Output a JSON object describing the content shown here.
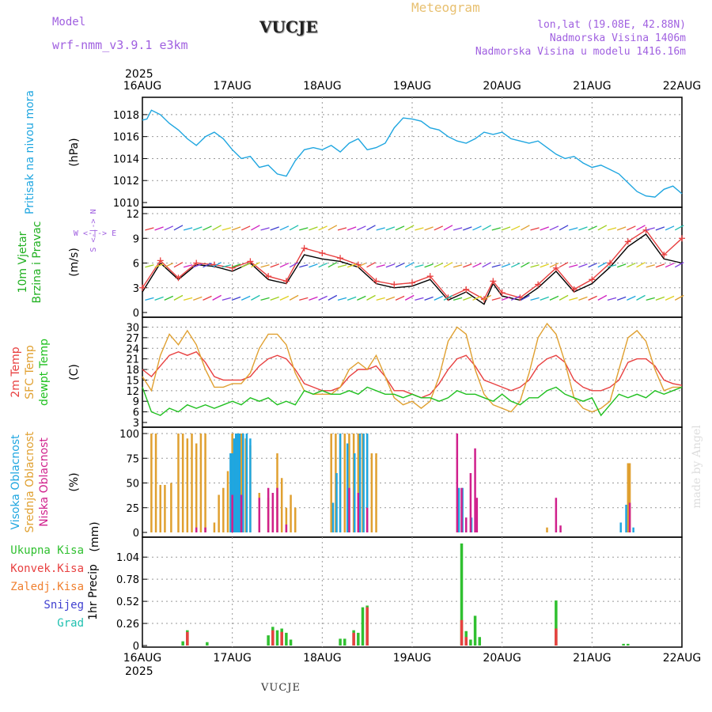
{
  "header": {
    "model_label": "Model",
    "model_name": "wrf-nmm_v3.9.1 e3km",
    "title": "VUCJE",
    "meteogram_label": "Meteogram",
    "coords": "lon,lat (19.08E, 42.88N)",
    "elevation": "Nadmorska Visina 1406m",
    "model_elevation": "Nadmorska Visina u modelu 1416.16m",
    "bottom_title": "VUCJE",
    "watermark": "made by Angel"
  },
  "colors": {
    "pressure": "#1fa6e0",
    "temp2m": "#e84040",
    "sfc": "#e0a030",
    "dew": "#20c020",
    "cloud_high": "#1fa6e0",
    "cloud_mid": "#e0a030",
    "cloud_low": "#d0208c",
    "total": "#30c030",
    "conv": "#e84040",
    "strat": "#f08030",
    "snow": "#4040d0",
    "hail": "#20c0b0",
    "wind_label": "#20b020",
    "wind_axis_label": "#a060e0",
    "model": "#a060e0"
  },
  "chart_data": [
    {
      "type": "line",
      "id": "pressure",
      "ylabel_lines": [
        "Pritisak na nivou mora"
      ],
      "unit": "(hPa)",
      "ylim": [
        1010,
        1019
      ],
      "yticks": [
        1010,
        1012,
        1014,
        1016,
        1018
      ],
      "x_start_label": "2025",
      "x_start_year": "2025",
      "x_end_year": "2025",
      "x_ticks": [
        "16AUG",
        "17AUG",
        "18AUG",
        "19AUG",
        "20AUG",
        "21AUG",
        "22AUG"
      ],
      "xlim_days": [
        0,
        6
      ],
      "series": [
        {
          "name": "Pritisak",
          "color": "#1fa6e0",
          "x": [
            0,
            0.05,
            0.1,
            0.15,
            0.2,
            0.3,
            0.4,
            0.5,
            0.6,
            0.7,
            0.8,
            0.9,
            1.0,
            1.1,
            1.2,
            1.3,
            1.4,
            1.5,
            1.6,
            1.7,
            1.8,
            1.9,
            2.0,
            2.1,
            2.2,
            2.3,
            2.4,
            2.5,
            2.6,
            2.7,
            2.8,
            2.9,
            3.0,
            3.1,
            3.2,
            3.3,
            3.4,
            3.5,
            3.6,
            3.7,
            3.8,
            3.9,
            4.0,
            4.1,
            4.2,
            4.3,
            4.4,
            4.5,
            4.6,
            4.7,
            4.8,
            4.9,
            5.0,
            5.1,
            5.2,
            5.3,
            5.4,
            5.5,
            5.6,
            5.7,
            5.8,
            5.9,
            6.0
          ],
          "y": [
            1017.5,
            1017.6,
            1018.4,
            1018.2,
            1018.0,
            1017.2,
            1016.6,
            1015.8,
            1015.2,
            1016.0,
            1016.4,
            1015.8,
            1014.8,
            1014.0,
            1014.2,
            1013.2,
            1013.4,
            1012.6,
            1012.4,
            1013.8,
            1014.8,
            1015.0,
            1014.8,
            1015.2,
            1014.6,
            1015.4,
            1015.8,
            1014.8,
            1015.0,
            1015.4,
            1016.8,
            1017.7,
            1017.6,
            1017.4,
            1016.8,
            1016.6,
            1016.0,
            1015.6,
            1015.4,
            1015.8,
            1016.4,
            1016.2,
            1016.4,
            1015.8,
            1015.6,
            1015.4,
            1015.6,
            1015.0,
            1014.4,
            1014.0,
            1014.2,
            1013.6,
            1013.2,
            1013.4,
            1013.0,
            1012.6,
            1011.8,
            1011.0,
            1010.6,
            1010.5,
            1011.2,
            1011.5,
            1010.8
          ]
        }
      ]
    },
    {
      "type": "line",
      "id": "wind",
      "ylabel_lines": [
        "10m Vjetar",
        "Brzina i Pravac"
      ],
      "unit": "(m/s)",
      "direction_label": "W <-|-> E",
      "direction_sub": "S <-|-> N",
      "ylim": [
        0,
        12
      ],
      "yticks": [
        0,
        3,
        6,
        9,
        12
      ],
      "xlim_days": [
        0,
        6
      ],
      "barb_rows_y": [
        1.5,
        5.5,
        10
      ],
      "series": [
        {
          "name": "Brzina (crna)",
          "color": "#000000",
          "x": [
            0,
            0.2,
            0.4,
            0.6,
            0.8,
            1.0,
            1.2,
            1.4,
            1.6,
            1.8,
            2.0,
            2.2,
            2.4,
            2.6,
            2.8,
            3.0,
            3.2,
            3.4,
            3.6,
            3.8,
            3.9,
            4.0,
            4.2,
            4.4,
            4.6,
            4.8,
            5.0,
            5.2,
            5.4,
            5.6,
            5.8,
            6.0
          ],
          "y": [
            2.5,
            6.0,
            4.0,
            5.8,
            5.6,
            5.0,
            6.0,
            4.0,
            3.5,
            7.0,
            6.5,
            6.2,
            5.5,
            3.5,
            3.0,
            3.2,
            4.0,
            1.5,
            2.5,
            1.0,
            3.5,
            2.0,
            1.5,
            3.0,
            5.0,
            2.5,
            3.5,
            5.5,
            8.0,
            9.5,
            6.5,
            6.0
          ]
        },
        {
          "name": "Udari (crvena)",
          "color": "#e84040",
          "x": [
            0,
            0.2,
            0.4,
            0.6,
            0.8,
            1.0,
            1.2,
            1.4,
            1.6,
            1.8,
            2.0,
            2.2,
            2.4,
            2.6,
            2.8,
            3.0,
            3.2,
            3.4,
            3.6,
            3.8,
            3.9,
            4.0,
            4.2,
            4.4,
            4.6,
            4.8,
            5.0,
            5.2,
            5.4,
            5.6,
            5.8,
            6.0
          ],
          "y": [
            3.0,
            6.3,
            4.2,
            6.0,
            5.8,
            5.4,
            6.2,
            4.4,
            3.8,
            7.8,
            7.2,
            6.6,
            5.8,
            3.8,
            3.4,
            3.6,
            4.4,
            1.8,
            2.8,
            1.6,
            3.8,
            2.4,
            1.8,
            3.4,
            5.4,
            2.8,
            4.0,
            6.0,
            8.6,
            10.0,
            7.0,
            9.0
          ]
        }
      ]
    },
    {
      "type": "line",
      "id": "temperature",
      "ylabel_lines": [
        "2m Temp",
        "SFC Temp",
        "dewpt Temp"
      ],
      "unit": "(C)",
      "ylim": [
        3,
        31
      ],
      "yticks": [
        3,
        6,
        9,
        12,
        15,
        18,
        21,
        24,
        27,
        30
      ],
      "xlim_days": [
        0,
        6
      ],
      "series": [
        {
          "name": "2m Temp",
          "color": "#e84040",
          "x": [
            0,
            0.1,
            0.2,
            0.3,
            0.4,
            0.5,
            0.6,
            0.7,
            0.8,
            0.9,
            1.0,
            1.1,
            1.2,
            1.3,
            1.4,
            1.5,
            1.6,
            1.7,
            1.8,
            1.9,
            2.0,
            2.1,
            2.2,
            2.3,
            2.4,
            2.5,
            2.6,
            2.7,
            2.8,
            2.9,
            3.0,
            3.1,
            3.2,
            3.3,
            3.4,
            3.5,
            3.6,
            3.7,
            3.8,
            3.9,
            4.0,
            4.1,
            4.2,
            4.3,
            4.4,
            4.5,
            4.6,
            4.7,
            4.8,
            4.9,
            5.0,
            5.1,
            5.2,
            5.3,
            5.4,
            5.5,
            5.6,
            5.7,
            5.8,
            5.9,
            6.0
          ],
          "y": [
            18,
            16,
            19,
            22,
            23,
            22,
            23,
            20,
            16,
            15,
            15,
            15,
            16,
            19,
            21,
            22,
            21,
            18,
            14,
            13,
            12,
            12,
            13,
            16,
            18,
            18,
            19,
            16,
            12,
            12,
            11,
            10,
            11,
            14,
            18,
            21,
            22,
            19,
            15,
            14,
            13,
            12,
            13,
            15,
            19,
            21,
            22,
            20,
            15,
            13,
            12,
            12,
            13,
            15,
            20,
            21,
            21,
            19,
            15,
            14,
            13.5
          ]
        },
        {
          "name": "SFC Temp",
          "color": "#e0a030",
          "x": [
            0,
            0.1,
            0.2,
            0.3,
            0.4,
            0.5,
            0.6,
            0.7,
            0.8,
            0.9,
            1.0,
            1.1,
            1.2,
            1.3,
            1.4,
            1.5,
            1.6,
            1.7,
            1.8,
            1.9,
            2.0,
            2.1,
            2.2,
            2.3,
            2.4,
            2.5,
            2.6,
            2.7,
            2.8,
            2.9,
            3.0,
            3.1,
            3.2,
            3.3,
            3.4,
            3.5,
            3.6,
            3.7,
            3.8,
            3.9,
            4.0,
            4.1,
            4.2,
            4.3,
            4.4,
            4.5,
            4.6,
            4.7,
            4.8,
            4.9,
            5.0,
            5.1,
            5.2,
            5.3,
            5.4,
            5.5,
            5.6,
            5.7,
            5.8,
            5.9,
            6.0
          ],
          "y": [
            16,
            12,
            22,
            28,
            25,
            29,
            25,
            18,
            13,
            13,
            14,
            14,
            17,
            24,
            28,
            28,
            25,
            17,
            12,
            11,
            11,
            11,
            13,
            18,
            20,
            18,
            22,
            16,
            10,
            8,
            9,
            7,
            9,
            16,
            26,
            30,
            28,
            18,
            11,
            8,
            7,
            6,
            9,
            17,
            27,
            31,
            28,
            20,
            10,
            7,
            6,
            7,
            9,
            18,
            27,
            29,
            26,
            18,
            12,
            13,
            13
          ]
        },
        {
          "name": "dewpt Temp",
          "color": "#20c020",
          "x": [
            0,
            0.1,
            0.2,
            0.3,
            0.4,
            0.5,
            0.6,
            0.7,
            0.8,
            0.9,
            1.0,
            1.1,
            1.2,
            1.3,
            1.4,
            1.5,
            1.6,
            1.7,
            1.8,
            1.9,
            2.0,
            2.1,
            2.2,
            2.3,
            2.4,
            2.5,
            2.6,
            2.7,
            2.8,
            2.9,
            3.0,
            3.1,
            3.2,
            3.3,
            3.4,
            3.5,
            3.6,
            3.7,
            3.8,
            3.9,
            4.0,
            4.1,
            4.2,
            4.3,
            4.4,
            4.5,
            4.6,
            4.7,
            4.8,
            4.9,
            5.0,
            5.1,
            5.2,
            5.3,
            5.4,
            5.5,
            5.6,
            5.7,
            5.8,
            5.9,
            6.0
          ],
          "y": [
            13,
            6,
            5,
            7,
            6,
            8,
            7,
            8,
            7,
            8,
            9,
            8,
            10,
            9,
            10,
            8,
            9,
            8,
            12,
            11,
            12,
            11,
            11,
            12,
            11,
            13,
            12,
            11,
            11,
            10,
            11,
            10,
            10,
            9,
            10,
            12,
            11,
            11,
            10,
            9,
            11,
            9,
            8,
            10,
            10,
            12,
            13,
            11,
            10,
            9,
            10,
            5,
            8,
            11,
            10,
            11,
            10,
            12,
            11,
            12,
            13
          ]
        }
      ]
    },
    {
      "type": "bar",
      "id": "clouds",
      "ylabel_lines": [
        "Visoka Oblacnost",
        "Srednja Oblacnost",
        "Niska Oblacnost"
      ],
      "unit": "(%)",
      "ylim": [
        0,
        100
      ],
      "yticks": [
        0,
        25,
        50,
        75,
        100
      ],
      "xlim_days": [
        0,
        6
      ],
      "series": [
        {
          "name": "Srednja Oblacnost",
          "color": "#e0a030",
          "x": [
            0.1,
            0.15,
            0.2,
            0.25,
            0.32,
            0.4,
            0.45,
            0.5,
            0.55,
            0.6,
            0.65,
            0.7,
            0.8,
            0.85,
            0.9,
            0.95,
            1.0,
            1.05,
            1.1,
            1.15,
            1.2,
            1.3,
            1.4,
            1.45,
            1.5,
            1.55,
            1.6,
            1.65,
            1.7,
            2.1,
            2.15,
            2.2,
            2.25,
            2.3,
            2.35,
            2.4,
            2.45,
            2.5,
            2.55,
            2.6,
            4.5,
            5.4,
            5.42
          ],
          "y": [
            100,
            100,
            48,
            48,
            50,
            100,
            100,
            95,
            100,
            90,
            100,
            100,
            10,
            38,
            45,
            62,
            100,
            100,
            100,
            95,
            88,
            40,
            35,
            25,
            80,
            55,
            25,
            38,
            25,
            100,
            100,
            100,
            100,
            100,
            100,
            100,
            100,
            100,
            80,
            80,
            5,
            70,
            70
          ]
        },
        {
          "name": "Visoka Oblacnost",
          "color": "#1fa6e0",
          "x": [
            0.98,
            1.0,
            1.02,
            1.04,
            1.06,
            1.08,
            1.12,
            1.16,
            1.2,
            2.12,
            2.16,
            2.2,
            2.28,
            2.36,
            2.42,
            2.46,
            2.5,
            3.52,
            3.56,
            3.6,
            3.66,
            5.32,
            5.38,
            5.46
          ],
          "y": [
            80,
            80,
            95,
            100,
            100,
            100,
            100,
            100,
            95,
            30,
            60,
            100,
            90,
            80,
            100,
            100,
            100,
            45,
            45,
            15,
            15,
            10,
            28,
            5
          ]
        },
        {
          "name": "Niska Oblacnost",
          "color": "#d0208c",
          "x": [
            0.6,
            0.7,
            1.0,
            1.1,
            1.3,
            1.4,
            1.45,
            1.5,
            1.6,
            2.3,
            2.4,
            2.5,
            3.5,
            3.55,
            3.6,
            3.65,
            3.7,
            3.72,
            4.6,
            4.65,
            5.42
          ],
          "y": [
            5,
            5,
            38,
            38,
            35,
            45,
            40,
            45,
            8,
            45,
            40,
            25,
            100,
            45,
            15,
            60,
            85,
            35,
            35,
            7,
            30
          ]
        }
      ]
    },
    {
      "type": "bar",
      "id": "precip",
      "ylabel_lines": [
        "1hr Precip"
      ],
      "unit": "(mm)",
      "ylim": [
        0,
        1.2
      ],
      "yticks": [
        0,
        0.26,
        0.52,
        0.78,
        1.04
      ],
      "ytick_labels": [
        "0",
        "0.26",
        "0.52",
        "0.78",
        "1.04"
      ],
      "xlim_days": [
        0,
        6
      ],
      "legend": [
        "Ukupna Kisa",
        "Konvek.Kisa",
        "Zaledj.Kisa",
        "Snijeg",
        "Grad"
      ],
      "series": [
        {
          "name": "Ukupna Kisa",
          "color": "#30c030",
          "x": [
            0.45,
            0.5,
            0.72,
            1.4,
            1.45,
            1.5,
            1.55,
            1.6,
            1.65,
            2.2,
            2.25,
            2.35,
            2.4,
            2.45,
            2.5,
            3.55,
            3.6,
            3.65,
            3.7,
            3.75,
            4.6,
            5.35,
            5.4
          ],
          "y": [
            0.05,
            0.18,
            0.04,
            0.12,
            0.22,
            0.18,
            0.2,
            0.15,
            0.07,
            0.08,
            0.08,
            0.18,
            0.15,
            0.45,
            0.47,
            1.2,
            0.17,
            0.07,
            0.35,
            0.1,
            0.53,
            0.02,
            0.02
          ]
        },
        {
          "name": "Konvek.Kisa",
          "color": "#e84040",
          "x": [
            0.5,
            1.45,
            1.55,
            2.35,
            2.5,
            3.55,
            3.6,
            4.6
          ],
          "y": [
            0.16,
            0.18,
            0.16,
            0.15,
            0.45,
            0.3,
            0.1,
            0.2
          ]
        }
      ]
    }
  ]
}
